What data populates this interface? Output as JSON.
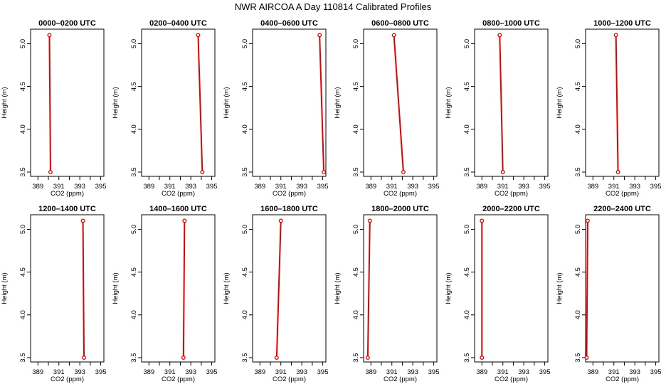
{
  "figure": {
    "title": "NWR AIRCOA A   Day 110814   Calibrated Profiles",
    "line_color": "#e00000",
    "marker_color": "#e00000",
    "axis_color": "#000000"
  },
  "chart_data": [
    {
      "type": "line",
      "title": "0000–0200 UTC",
      "xlabel": "CO2 (ppm)",
      "ylabel": "Height (m)",
      "xlim": [
        388.3,
        395.3
      ],
      "ylim": [
        3.45,
        5.17
      ],
      "xticks": [
        "389",
        "391",
        "393",
        "395"
      ],
      "yticks": [
        "3.5",
        "4.0",
        "4.5",
        "5.0"
      ],
      "series": [
        {
          "x": [
            390.1,
            390.2
          ],
          "y": [
            5.1,
            3.5
          ]
        }
      ]
    },
    {
      "type": "line",
      "title": "0200–0400 UTC",
      "xlabel": "CO2 (ppm)",
      "ylabel": "Height (m)",
      "xlim": [
        388.3,
        395.3
      ],
      "ylim": [
        3.45,
        5.17
      ],
      "xticks": [
        "389",
        "391",
        "393",
        "395"
      ],
      "yticks": [
        "3.5",
        "4.0",
        "4.5",
        "5.0"
      ],
      "series": [
        {
          "x": [
            393.7,
            394.1
          ],
          "y": [
            5.1,
            3.5
          ]
        }
      ]
    },
    {
      "type": "line",
      "title": "0400–0600 UTC",
      "xlabel": "CO2 (ppm)",
      "ylabel": "Height (m)",
      "xlim": [
        388.3,
        395.3
      ],
      "ylim": [
        3.45,
        5.17
      ],
      "xticks": [
        "389",
        "391",
        "393",
        "395"
      ],
      "yticks": [
        "3.5",
        "4.0",
        "4.5",
        "5.0"
      ],
      "series": [
        {
          "x": [
            394.7,
            395.1
          ],
          "y": [
            5.1,
            3.5
          ]
        }
      ]
    },
    {
      "type": "line",
      "title": "0600–0800 UTC",
      "xlabel": "CO2 (ppm)",
      "ylabel": "Height (m)",
      "xlim": [
        388.3,
        395.3
      ],
      "ylim": [
        3.45,
        5.17
      ],
      "xticks": [
        "389",
        "391",
        "393",
        "395"
      ],
      "yticks": [
        "3.5",
        "4.0",
        "4.5",
        "5.0"
      ],
      "series": [
        {
          "x": [
            391.2,
            392.1
          ],
          "y": [
            5.1,
            3.5
          ]
        }
      ]
    },
    {
      "type": "line",
      "title": "0800–1000 UTC",
      "xlabel": "CO2 (ppm)",
      "ylabel": "Height (m)",
      "xlim": [
        388.3,
        395.3
      ],
      "ylim": [
        3.45,
        5.17
      ],
      "xticks": [
        "389",
        "391",
        "393",
        "395"
      ],
      "yticks": [
        "3.5",
        "4.0",
        "4.5",
        "5.0"
      ],
      "series": [
        {
          "x": [
            390.7,
            391.0
          ],
          "y": [
            5.1,
            3.5
          ]
        }
      ]
    },
    {
      "type": "line",
      "title": "1000–1200 UTC",
      "xlabel": "CO2 (ppm)",
      "ylabel": "Height (m)",
      "xlim": [
        388.3,
        395.3
      ],
      "ylim": [
        3.45,
        5.17
      ],
      "xticks": [
        "389",
        "391",
        "393",
        "395"
      ],
      "yticks": [
        "3.5",
        "4.0",
        "4.5",
        "5.0"
      ],
      "series": [
        {
          "x": [
            391.2,
            391.4
          ],
          "y": [
            5.1,
            3.5
          ]
        }
      ]
    },
    {
      "type": "line",
      "title": "1200–1400 UTC",
      "xlabel": "CO2 (ppm)",
      "ylabel": "Height (m)",
      "xlim": [
        388.3,
        395.3
      ],
      "ylim": [
        3.45,
        5.17
      ],
      "xticks": [
        "389",
        "391",
        "393",
        "395"
      ],
      "yticks": [
        "3.5",
        "4.0",
        "4.5",
        "5.0"
      ],
      "series": [
        {
          "x": [
            393.3,
            393.4
          ],
          "y": [
            5.1,
            3.5
          ]
        }
      ]
    },
    {
      "type": "line",
      "title": "1400–1600 UTC",
      "xlabel": "CO2 (ppm)",
      "ylabel": "Height (m)",
      "xlim": [
        388.3,
        395.3
      ],
      "ylim": [
        3.45,
        5.17
      ],
      "xticks": [
        "389",
        "391",
        "393",
        "395"
      ],
      "yticks": [
        "3.5",
        "4.0",
        "4.5",
        "5.0"
      ],
      "series": [
        {
          "x": [
            392.4,
            392.3
          ],
          "y": [
            5.1,
            3.5
          ]
        }
      ]
    },
    {
      "type": "line",
      "title": "1600–1800 UTC",
      "xlabel": "CO2 (ppm)",
      "ylabel": "Height (m)",
      "xlim": [
        388.3,
        395.3
      ],
      "ylim": [
        3.45,
        5.17
      ],
      "xticks": [
        "389",
        "391",
        "393",
        "395"
      ],
      "yticks": [
        "3.5",
        "4.0",
        "4.5",
        "5.0"
      ],
      "series": [
        {
          "x": [
            391.0,
            390.6
          ],
          "y": [
            5.1,
            3.5
          ]
        }
      ]
    },
    {
      "type": "line",
      "title": "1800–2000 UTC",
      "xlabel": "CO2 (ppm)",
      "ylabel": "Height (m)",
      "xlim": [
        388.3,
        395.3
      ],
      "ylim": [
        3.45,
        5.17
      ],
      "xticks": [
        "389",
        "391",
        "393",
        "395"
      ],
      "yticks": [
        "3.5",
        "4.0",
        "4.5",
        "5.0"
      ],
      "series": [
        {
          "x": [
            388.9,
            388.7
          ],
          "y": [
            5.1,
            3.5
          ]
        }
      ]
    },
    {
      "type": "line",
      "title": "2000–2200 UTC",
      "xlabel": "CO2 (ppm)",
      "ylabel": "Height (m)",
      "xlim": [
        388.3,
        395.3
      ],
      "ylim": [
        3.45,
        5.17
      ],
      "xticks": [
        "389",
        "391",
        "393",
        "395"
      ],
      "yticks": [
        "3.5",
        "4.0",
        "4.5",
        "5.0"
      ],
      "series": [
        {
          "x": [
            389.0,
            389.0
          ],
          "y": [
            5.1,
            3.5
          ]
        }
      ]
    },
    {
      "type": "line",
      "title": "2200–2400 UTC",
      "xlabel": "CO2 (ppm)",
      "ylabel": "Height (m)",
      "xlim": [
        388.3,
        395.3
      ],
      "ylim": [
        3.45,
        5.17
      ],
      "xticks": [
        "389",
        "391",
        "393",
        "395"
      ],
      "yticks": [
        "3.5",
        "4.0",
        "4.5",
        "5.0"
      ],
      "series": [
        {
          "x": [
            388.5,
            388.4
          ],
          "y": [
            5.1,
            3.5
          ]
        }
      ]
    }
  ]
}
